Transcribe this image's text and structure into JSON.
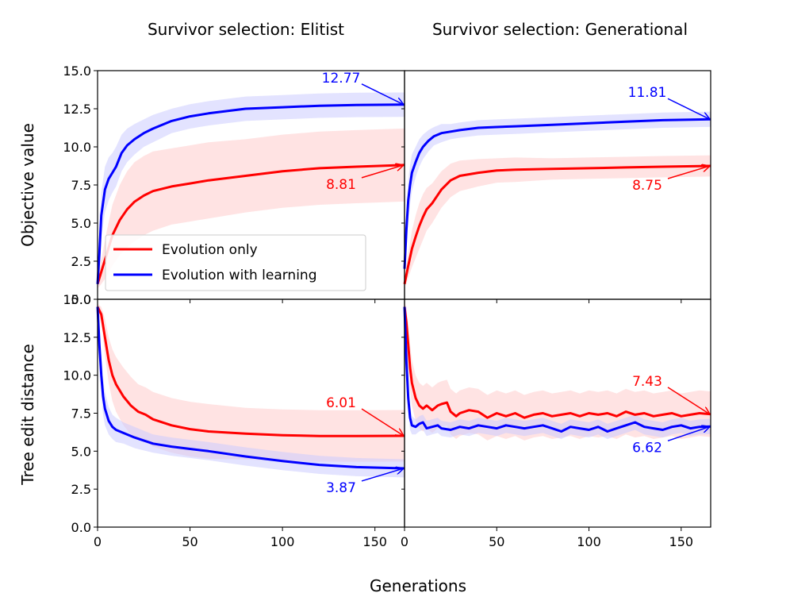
{
  "chart_data": {
    "type": "line",
    "x_label": "Generations",
    "columns": [
      {
        "id": "elitist",
        "title": "Survivor selection: Elitist"
      },
      {
        "id": "generational",
        "title": "Survivor selection: Generational"
      }
    ],
    "rows": [
      {
        "id": "objective",
        "ylabel": "Objective value",
        "ylim": [
          0,
          15
        ],
        "yticks": [
          "0.0",
          "2.5",
          "5.0",
          "7.5",
          "10.0",
          "12.5",
          "15.0"
        ]
      },
      {
        "id": "distance",
        "ylabel": "Tree edit distance",
        "ylim": [
          0,
          15
        ],
        "yticks": [
          "0.0",
          "2.5",
          "5.0",
          "7.5",
          "10.0",
          "12.5",
          "15.0"
        ]
      }
    ],
    "xlim": [
      0,
      166
    ],
    "xticks": [
      "0",
      "50",
      "100",
      "150"
    ],
    "colors": {
      "evolution_only": "#ff0000",
      "evolution_learning": "#0000ff",
      "band_red": "#ffcccc",
      "band_blue": "#ccccff"
    },
    "legend": {
      "position": "lower-left of top-left panel",
      "entries": [
        {
          "label": "Evolution only",
          "color": "#ff0000"
        },
        {
          "label": "Evolution with learning",
          "color": "#0000ff"
        }
      ]
    },
    "panels": [
      {
        "row": "objective",
        "col": "elitist",
        "series": [
          {
            "name": "Evolution only",
            "color": "#ff0000",
            "x": [
              0,
              2,
              5,
              8,
              12,
              16,
              20,
              25,
              30,
              40,
              50,
              60,
              80,
              100,
              120,
              140,
              166
            ],
            "y": [
              1.0,
              1.8,
              3.0,
              4.2,
              5.2,
              5.9,
              6.4,
              6.8,
              7.1,
              7.4,
              7.6,
              7.8,
              8.1,
              8.4,
              8.6,
              8.7,
              8.81
            ],
            "sd": [
              0.3,
              0.8,
              1.5,
              2.0,
              2.3,
              2.5,
              2.6,
              2.6,
              2.6,
              2.5,
              2.5,
              2.5,
              2.4,
              2.4,
              2.4,
              2.4,
              2.4
            ]
          },
          {
            "name": "Evolution with learning",
            "color": "#0000ff",
            "x": [
              0,
              1,
              2,
              4,
              6,
              8,
              10,
              13,
              16,
              20,
              25,
              30,
              40,
              50,
              60,
              80,
              100,
              120,
              140,
              166
            ],
            "y": [
              1.0,
              3.0,
              5.5,
              7.2,
              7.9,
              8.3,
              8.7,
              9.6,
              10.1,
              10.5,
              10.9,
              11.2,
              11.7,
              12.0,
              12.2,
              12.5,
              12.6,
              12.7,
              12.75,
              12.77
            ],
            "sd": [
              0.5,
              1.5,
              1.5,
              1.5,
              1.4,
              1.3,
              1.3,
              1.2,
              1.1,
              1.0,
              0.9,
              0.9,
              0.8,
              0.8,
              0.8,
              0.8,
              0.8,
              0.8,
              0.8,
              0.8
            ]
          }
        ],
        "annotations": [
          {
            "text": "12.77",
            "color": "#0000ff",
            "x": 166,
            "y": 12.77
          },
          {
            "text": "8.81",
            "color": "#ff0000",
            "x": 166,
            "y": 8.81
          }
        ]
      },
      {
        "row": "objective",
        "col": "generational",
        "series": [
          {
            "name": "Evolution only",
            "color": "#ff0000",
            "x": [
              0,
              2,
              4,
              6,
              8,
              10,
              12,
              15,
              20,
              25,
              30,
              40,
              50,
              60,
              80,
              100,
              120,
              140,
              166
            ],
            "y": [
              1.0,
              2.2,
              3.3,
              4.1,
              4.8,
              5.4,
              5.9,
              6.3,
              7.2,
              7.8,
              8.1,
              8.3,
              8.45,
              8.5,
              8.55,
              8.6,
              8.65,
              8.7,
              8.75
            ],
            "sd": [
              0.3,
              0.8,
              1.2,
              1.4,
              1.5,
              1.5,
              1.4,
              1.3,
              1.2,
              1.1,
              1.0,
              0.9,
              0.8,
              0.8,
              0.7,
              0.7,
              0.7,
              0.7,
              0.7
            ]
          },
          {
            "name": "Evolution with learning",
            "color": "#0000ff",
            "x": [
              0,
              1,
              2,
              3,
              4,
              6,
              8,
              10,
              13,
              16,
              20,
              25,
              30,
              40,
              50,
              60,
              80,
              100,
              120,
              140,
              166
            ],
            "y": [
              2.0,
              4.5,
              6.5,
              7.5,
              8.3,
              9.0,
              9.6,
              10.0,
              10.4,
              10.7,
              10.9,
              11.0,
              11.1,
              11.25,
              11.3,
              11.35,
              11.45,
              11.55,
              11.65,
              11.75,
              11.81
            ],
            "sd": [
              0.5,
              1.2,
              1.3,
              1.3,
              1.2,
              1.0,
              0.9,
              0.8,
              0.7,
              0.6,
              0.6,
              0.5,
              0.5,
              0.5,
              0.5,
              0.5,
              0.5,
              0.5,
              0.5,
              0.5,
              0.5
            ]
          }
        ],
        "annotations": [
          {
            "text": "11.81",
            "color": "#0000ff",
            "x": 166,
            "y": 11.81
          },
          {
            "text": "8.75",
            "color": "#ff0000",
            "x": 166,
            "y": 8.75
          }
        ]
      },
      {
        "row": "distance",
        "col": "elitist",
        "series": [
          {
            "name": "Evolution only",
            "color": "#ff0000",
            "x": [
              0,
              2,
              4,
              6,
              8,
              10,
              14,
              18,
              22,
              26,
              30,
              40,
              50,
              60,
              80,
              100,
              120,
              140,
              166
            ],
            "y": [
              14.5,
              14.0,
              12.5,
              11.0,
              10.0,
              9.4,
              8.6,
              8.0,
              7.6,
              7.4,
              7.1,
              6.7,
              6.45,
              6.3,
              6.15,
              6.05,
              6.0,
              6.0,
              6.01
            ],
            "sd": [
              0.2,
              0.5,
              1.2,
              1.5,
              1.7,
              1.8,
              1.9,
              1.9,
              1.8,
              1.8,
              1.8,
              1.8,
              1.8,
              1.8,
              1.7,
              1.7,
              1.7,
              1.7,
              1.7
            ]
          },
          {
            "name": "Evolution with learning",
            "color": "#0000ff",
            "x": [
              0,
              1,
              2,
              3,
              4,
              6,
              8,
              10,
              14,
              20,
              30,
              40,
              50,
              60,
              80,
              100,
              120,
              140,
              166
            ],
            "y": [
              14.5,
              12.0,
              10.0,
              8.6,
              7.8,
              7.0,
              6.6,
              6.4,
              6.2,
              5.9,
              5.5,
              5.3,
              5.15,
              5.0,
              4.65,
              4.35,
              4.1,
              3.95,
              3.87
            ],
            "sd": [
              0.3,
              1.0,
              1.3,
              1.2,
              1.1,
              0.9,
              0.8,
              0.8,
              0.7,
              0.7,
              0.6,
              0.6,
              0.6,
              0.6,
              0.6,
              0.6,
              0.6,
              0.6,
              0.6
            ]
          }
        ],
        "annotations": [
          {
            "text": "6.01",
            "color": "#ff0000",
            "x": 166,
            "y": 6.01
          },
          {
            "text": "3.87",
            "color": "#0000ff",
            "x": 166,
            "y": 3.87
          }
        ]
      },
      {
        "row": "distance",
        "col": "generational",
        "series": [
          {
            "name": "Evolution only",
            "color": "#ff0000",
            "x": [
              0,
              1,
              2,
              3,
              4,
              6,
              8,
              10,
              12,
              15,
              18,
              20,
              23,
              25,
              28,
              30,
              35,
              40,
              45,
              50,
              55,
              60,
              65,
              70,
              75,
              80,
              85,
              90,
              95,
              100,
              105,
              110,
              115,
              120,
              125,
              130,
              135,
              140,
              145,
              150,
              155,
              160,
              166
            ],
            "y": [
              14.5,
              13.5,
              12.0,
              10.5,
              9.5,
              8.5,
              8.0,
              7.8,
              8.0,
              7.7,
              8.0,
              8.1,
              8.2,
              7.6,
              7.3,
              7.5,
              7.7,
              7.6,
              7.2,
              7.5,
              7.3,
              7.5,
              7.2,
              7.4,
              7.5,
              7.3,
              7.4,
              7.5,
              7.3,
              7.5,
              7.4,
              7.5,
              7.3,
              7.6,
              7.4,
              7.5,
              7.3,
              7.4,
              7.5,
              7.3,
              7.4,
              7.5,
              7.43
            ],
            "sd": [
              0.3,
              1.0,
              1.4,
              1.5,
              1.5,
              1.5,
              1.5,
              1.5,
              1.5,
              1.5,
              1.5,
              1.5,
              1.5,
              1.5,
              1.5,
              1.5,
              1.5,
              1.5,
              1.5,
              1.5,
              1.5,
              1.5,
              1.5,
              1.5,
              1.5,
              1.5,
              1.5,
              1.5,
              1.5,
              1.5,
              1.5,
              1.5,
              1.5,
              1.5,
              1.5,
              1.5,
              1.5,
              1.5,
              1.5,
              1.5,
              1.5,
              1.5,
              1.5
            ]
          },
          {
            "name": "Evolution with learning",
            "color": "#0000ff",
            "x": [
              0,
              1,
              2,
              3,
              4,
              6,
              8,
              10,
              12,
              15,
              18,
              20,
              25,
              30,
              35,
              40,
              45,
              50,
              55,
              60,
              65,
              70,
              75,
              80,
              85,
              90,
              95,
              100,
              105,
              110,
              115,
              120,
              125,
              130,
              135,
              140,
              145,
              150,
              155,
              160,
              166
            ],
            "y": [
              14.5,
              11.0,
              8.5,
              7.2,
              6.7,
              6.6,
              6.8,
              6.9,
              6.5,
              6.6,
              6.7,
              6.5,
              6.4,
              6.6,
              6.5,
              6.7,
              6.6,
              6.5,
              6.7,
              6.6,
              6.5,
              6.6,
              6.7,
              6.5,
              6.3,
              6.6,
              6.5,
              6.4,
              6.6,
              6.3,
              6.5,
              6.7,
              6.9,
              6.6,
              6.5,
              6.4,
              6.6,
              6.7,
              6.5,
              6.6,
              6.62
            ],
            "sd": [
              0.3,
              1.0,
              1.0,
              0.8,
              0.6,
              0.5,
              0.5,
              0.5,
              0.5,
              0.5,
              0.5,
              0.5,
              0.5,
              0.5,
              0.5,
              0.5,
              0.5,
              0.5,
              0.5,
              0.5,
              0.5,
              0.5,
              0.5,
              0.5,
              0.5,
              0.5,
              0.5,
              0.5,
              0.5,
              0.5,
              0.5,
              0.5,
              0.5,
              0.5,
              0.5,
              0.5,
              0.5,
              0.5,
              0.5,
              0.5,
              0.5
            ]
          }
        ],
        "annotations": [
          {
            "text": "7.43",
            "color": "#ff0000",
            "x": 166,
            "y": 7.43
          },
          {
            "text": "6.62",
            "color": "#0000ff",
            "x": 166,
            "y": 6.62
          }
        ]
      }
    ]
  }
}
